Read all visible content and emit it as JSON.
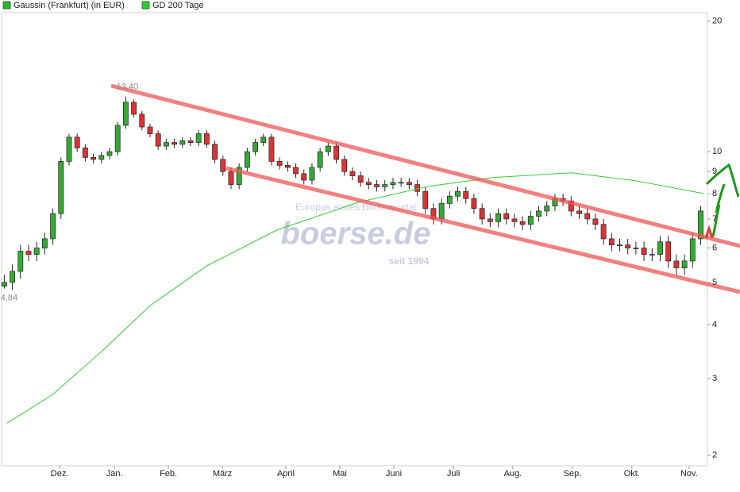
{
  "chart_data": {
    "type": "candlestick",
    "log_scale": true,
    "grid": false,
    "legend": "top-left",
    "up_color": "#33aa33",
    "down_color": "#dd3333",
    "xlim": [
      0,
      261.5
    ],
    "xticks": [
      {
        "value": 21.5,
        "label": "Dez."
      },
      {
        "value": 41.8,
        "label": "Jan."
      },
      {
        "value": 61.8,
        "label": "Feb."
      },
      {
        "value": 81.8,
        "label": "März"
      },
      {
        "value": 105.3,
        "label": "April"
      },
      {
        "value": 125.3,
        "label": "Mai"
      },
      {
        "value": 145.3,
        "label": "Juni"
      },
      {
        "value": 167.4,
        "label": "Juli"
      },
      {
        "value": 189.4,
        "label": "Aug."
      },
      {
        "value": 211.5,
        "label": "Sep."
      },
      {
        "value": 233.5,
        "label": "Okt."
      },
      {
        "value": 254.7,
        "label": "Nov."
      }
    ],
    "ylim": [
      1.89,
      20.9
    ],
    "yticks": [
      2,
      3,
      4,
      5,
      6,
      7,
      8,
      9,
      10,
      20
    ],
    "annotations": [
      {
        "text": "13,40",
        "x": 46,
        "value": 13.4
      },
      {
        "text": "4,84",
        "x": 1,
        "value": 4.84
      }
    ],
    "watermark": {
      "tagline": "Europas erstes Börsenportal",
      "logo": "boerse.de",
      "since": "seit 1994"
    },
    "series": [
      {
        "name": "Gaussin (Frankfurt) (in EUR)",
        "color": "#22bb22",
        "x": [
          1,
          4,
          7,
          10,
          13,
          16,
          19,
          22,
          25,
          28,
          31,
          34,
          37,
          40,
          43,
          46,
          49,
          52,
          55,
          58,
          61,
          64,
          67,
          70,
          73,
          76,
          79,
          82,
          85,
          88,
          91,
          94,
          97,
          100,
          103,
          106,
          109,
          112,
          115,
          118,
          121,
          124,
          127,
          130,
          133,
          136,
          139,
          142,
          145,
          148,
          151,
          154,
          157,
          160,
          163,
          166,
          169,
          172,
          175,
          178,
          181,
          184,
          187,
          190,
          193,
          196,
          199,
          202,
          205,
          208,
          211,
          214,
          217,
          220,
          223,
          226,
          229,
          232,
          235,
          238,
          241,
          244,
          247,
          250,
          253,
          256,
          259
        ],
        "open": [
          4.9,
          5.0,
          5.3,
          5.9,
          5.8,
          6.0,
          6.3,
          7.2,
          9.5,
          10.8,
          10.2,
          9.7,
          9.6,
          9.8,
          10.0,
          11.5,
          13.0,
          12.2,
          11.4,
          11.0,
          10.3,
          10.5,
          10.4,
          10.6,
          10.5,
          11.0,
          10.4,
          9.6,
          9.0,
          8.4,
          9.2,
          10.0,
          10.5,
          10.8,
          9.5,
          9.3,
          9.2,
          8.9,
          8.6,
          9.2,
          10.0,
          10.3,
          9.6,
          9.0,
          8.8,
          8.5,
          8.4,
          8.3,
          8.4,
          8.5,
          8.5,
          8.4,
          8.1,
          7.4,
          7.0,
          7.6,
          7.9,
          8.1,
          7.8,
          7.4,
          7.0,
          6.9,
          7.2,
          7.0,
          6.9,
          6.8,
          7.1,
          7.3,
          7.5,
          7.8,
          7.7,
          7.3,
          7.2,
          7.0,
          6.8,
          6.3,
          6.1,
          6.1,
          6.0,
          6.0,
          5.8,
          5.8,
          6.2,
          5.6,
          5.4,
          5.6,
          6.3
        ],
        "high": [
          5.2,
          5.5,
          6.1,
          6.1,
          6.2,
          6.5,
          7.4,
          9.7,
          11.0,
          11.0,
          10.4,
          9.9,
          10.0,
          10.2,
          11.7,
          13.4,
          13.2,
          12.4,
          11.6,
          11.2,
          10.7,
          10.7,
          10.8,
          10.8,
          11.2,
          11.2,
          10.6,
          9.8,
          9.2,
          9.4,
          10.2,
          10.7,
          11.0,
          11.0,
          9.7,
          9.5,
          9.4,
          9.1,
          9.4,
          10.2,
          10.5,
          10.5,
          9.8,
          9.2,
          9.0,
          8.7,
          8.6,
          8.6,
          8.7,
          8.7,
          8.7,
          8.6,
          8.3,
          7.6,
          7.8,
          8.1,
          8.3,
          8.3,
          8.0,
          7.6,
          7.2,
          7.4,
          7.4,
          7.2,
          7.1,
          7.3,
          7.5,
          7.7,
          8.0,
          8.0,
          7.9,
          7.5,
          7.4,
          7.2,
          7.0,
          6.5,
          6.3,
          6.3,
          6.2,
          6.2,
          6.0,
          6.4,
          6.4,
          5.8,
          5.8,
          6.5,
          7.5
        ],
        "low": [
          4.84,
          4.8,
          5.1,
          5.6,
          5.6,
          5.8,
          6.1,
          7.0,
          9.3,
          10.0,
          9.5,
          9.4,
          9.4,
          9.6,
          9.8,
          11.3,
          12.0,
          11.2,
          10.8,
          10.1,
          10.1,
          10.2,
          10.2,
          10.3,
          10.3,
          10.2,
          9.4,
          8.8,
          8.2,
          8.2,
          9.0,
          9.8,
          10.3,
          9.3,
          9.1,
          9.0,
          8.7,
          8.4,
          8.4,
          9.0,
          9.8,
          9.4,
          8.8,
          8.6,
          8.3,
          8.2,
          8.1,
          8.1,
          8.2,
          8.3,
          8.2,
          7.9,
          7.2,
          6.8,
          6.8,
          7.4,
          7.7,
          7.6,
          7.2,
          6.8,
          6.7,
          6.7,
          6.8,
          6.7,
          6.6,
          6.6,
          6.9,
          7.1,
          7.3,
          7.5,
          7.1,
          7.0,
          6.8,
          6.6,
          6.1,
          5.9,
          5.9,
          5.8,
          5.8,
          5.6,
          5.6,
          5.6,
          5.4,
          5.2,
          5.2,
          5.4,
          6.1
        ],
        "close": [
          5.0,
          5.3,
          5.9,
          5.8,
          6.0,
          6.3,
          7.2,
          9.5,
          10.8,
          10.2,
          9.7,
          9.6,
          9.8,
          10.0,
          11.5,
          13.0,
          12.2,
          11.4,
          11.0,
          10.3,
          10.5,
          10.4,
          10.6,
          10.5,
          11.0,
          10.4,
          9.6,
          9.0,
          8.4,
          9.2,
          10.0,
          10.5,
          10.8,
          9.5,
          9.3,
          9.2,
          8.9,
          8.6,
          9.2,
          10.0,
          10.3,
          9.6,
          9.0,
          8.8,
          8.5,
          8.4,
          8.3,
          8.4,
          8.5,
          8.5,
          8.4,
          8.1,
          7.4,
          7.0,
          7.6,
          7.9,
          8.1,
          7.8,
          7.4,
          7.0,
          6.9,
          7.2,
          7.0,
          6.9,
          6.8,
          7.1,
          7.3,
          7.5,
          7.8,
          7.7,
          7.3,
          7.2,
          7.0,
          6.8,
          6.3,
          6.1,
          6.1,
          6.0,
          6.0,
          5.8,
          5.8,
          6.2,
          5.6,
          5.4,
          5.6,
          6.3,
          7.3
        ]
      },
      {
        "name": "GD 200 Tage",
        "color": "#33cc33",
        "type": "line",
        "x": [
          2,
          19,
          38,
          55,
          76,
          102,
          132,
          158,
          182,
          211,
          235,
          260
        ],
        "values": [
          2.37,
          2.76,
          3.51,
          4.42,
          5.46,
          6.6,
          7.64,
          8.32,
          8.72,
          8.94,
          8.57,
          8.01
        ]
      }
    ]
  }
}
